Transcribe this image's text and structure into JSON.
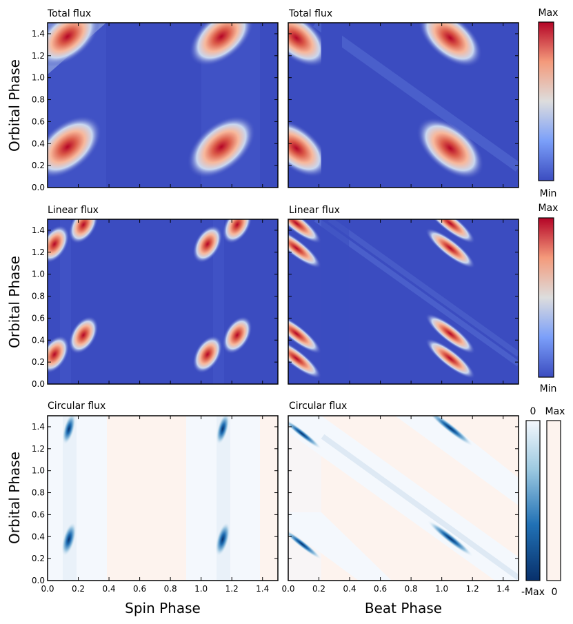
{
  "figure": {
    "xlabel_left": "Spin Phase",
    "xlabel_right": "Beat Phase",
    "ylabel": "Orbital Phase",
    "x_ticks": [
      "0.0",
      "0.2",
      "0.4",
      "0.6",
      "0.8",
      "1.0",
      "1.2",
      "1.4"
    ],
    "y_ticks": [
      "0.0",
      "0.2",
      "0.4",
      "0.6",
      "0.8",
      "1.0",
      "1.2",
      "1.4"
    ]
  },
  "colorbars": {
    "total": {
      "max": "Max",
      "min": "Min"
    },
    "linear": {
      "max": "Max",
      "min": "Min"
    },
    "circular_negative": {
      "top": "0",
      "bottom": "-Max"
    },
    "circular_positive": {
      "top": "Max",
      "bottom": "0"
    }
  },
  "colors": {
    "background_total": "#3b4cc0",
    "peak_high": "#b40426",
    "circular_positive": "#fdf3ee",
    "circular_zero": "#f4f8fd",
    "circular_negative": "#08306b"
  },
  "chart_data": [
    {
      "type": "heatmap",
      "title": "Total flux",
      "xlabel": "",
      "ylabel": "Orbital Phase",
      "xlim": [
        0,
        1.5
      ],
      "ylim": [
        0,
        1.5
      ],
      "colormap": "coolwarm",
      "blobs": [
        {
          "x": 0.13,
          "y": 1.37
        },
        {
          "x": 1.13,
          "y": 1.37
        },
        {
          "x": 0.13,
          "y": 0.37
        },
        {
          "x": 1.13,
          "y": 0.37
        }
      ]
    },
    {
      "type": "heatmap",
      "title": "Total flux",
      "xlabel": "",
      "ylabel": "",
      "xlim": [
        0,
        1.5
      ],
      "ylim": [
        0,
        1.5
      ],
      "colormap": "coolwarm",
      "blobs": [
        {
          "x": 0.05,
          "y": 1.37
        },
        {
          "x": 1.05,
          "y": 1.37
        },
        {
          "x": 0.05,
          "y": 0.37
        },
        {
          "x": 1.05,
          "y": 0.37
        }
      ]
    },
    {
      "type": "heatmap",
      "title": "Linear flux",
      "xlabel": "",
      "ylabel": "Orbital Phase",
      "xlim": [
        0,
        1.5
      ],
      "ylim": [
        0,
        1.5
      ],
      "colormap": "coolwarm",
      "blobs": [
        {
          "x": 0.05,
          "y": 1.27
        },
        {
          "x": 0.23,
          "y": 1.45
        },
        {
          "x": 1.05,
          "y": 1.27
        },
        {
          "x": 1.23,
          "y": 1.45
        },
        {
          "x": 0.05,
          "y": 0.27
        },
        {
          "x": 0.23,
          "y": 0.45
        },
        {
          "x": 1.05,
          "y": 0.27
        },
        {
          "x": 1.23,
          "y": 0.45
        }
      ]
    },
    {
      "type": "heatmap",
      "title": "Linear flux",
      "xlabel": "",
      "ylabel": "",
      "xlim": [
        0,
        1.5
      ],
      "ylim": [
        0,
        1.5
      ],
      "colormap": "coolwarm",
      "blobs": [
        {
          "x": 0.05,
          "y": 1.45
        },
        {
          "x": 0.05,
          "y": 1.27
        },
        {
          "x": 1.05,
          "y": 1.45
        },
        {
          "x": 1.05,
          "y": 1.27
        },
        {
          "x": 0.05,
          "y": 0.45
        },
        {
          "x": 0.05,
          "y": 0.27
        },
        {
          "x": 1.05,
          "y": 0.45
        },
        {
          "x": 1.05,
          "y": 0.27
        }
      ]
    },
    {
      "type": "heatmap",
      "title": "Circular flux",
      "xlabel": "Spin Phase",
      "ylabel": "Orbital Phase",
      "xlim": [
        0,
        1.5
      ],
      "ylim": [
        0,
        1.5
      ],
      "colormap": "Blues_r / Reds",
      "blobs": [
        {
          "x": 0.14,
          "y": 1.38
        },
        {
          "x": 1.14,
          "y": 1.38
        },
        {
          "x": 0.14,
          "y": 0.38
        },
        {
          "x": 1.14,
          "y": 0.38
        }
      ]
    },
    {
      "type": "heatmap",
      "title": "Circular flux",
      "xlabel": "Beat Phase",
      "ylabel": "",
      "xlim": [
        0,
        1.5
      ],
      "ylim": [
        0,
        1.5
      ],
      "colormap": "Blues_r / Reds",
      "blobs": [
        {
          "x": 0.1,
          "y": 1.33
        },
        {
          "x": 1.1,
          "y": 1.38
        },
        {
          "x": 0.1,
          "y": 0.33
        },
        {
          "x": 1.1,
          "y": 0.38
        }
      ]
    }
  ]
}
